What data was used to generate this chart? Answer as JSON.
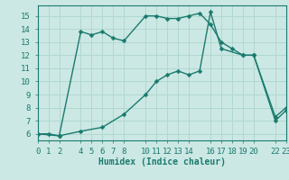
{
  "xlabel": "Humidex (Indice chaleur)",
  "bg_color": "#cce8e4",
  "grid_color": "#b0d8d0",
  "line_color": "#1a7a6e",
  "xlim": [
    0,
    23
  ],
  "ylim": [
    5.5,
    15.8
  ],
  "xticks": [
    0,
    1,
    2,
    4,
    5,
    6,
    7,
    8,
    10,
    11,
    12,
    13,
    14,
    16,
    17,
    18,
    19,
    20,
    22,
    23
  ],
  "yticks": [
    6,
    7,
    8,
    9,
    10,
    11,
    12,
    13,
    14,
    15
  ],
  "line1_x": [
    0,
    1,
    2,
    4,
    5,
    6,
    7,
    8,
    10,
    11,
    12,
    13,
    14,
    15,
    16,
    17,
    18,
    19,
    20,
    22,
    23
  ],
  "line1_y": [
    6.0,
    6.0,
    5.85,
    13.8,
    13.55,
    13.8,
    13.3,
    13.1,
    15.0,
    15.0,
    14.8,
    14.8,
    15.0,
    15.2,
    14.35,
    13.0,
    12.5,
    12.0,
    12.0,
    7.0,
    7.8
  ],
  "line2_x": [
    0,
    2,
    4,
    6,
    8,
    10,
    11,
    12,
    13,
    14,
    15,
    16,
    17,
    19,
    20,
    22,
    23
  ],
  "line2_y": [
    6.0,
    5.85,
    6.2,
    6.5,
    7.5,
    9.0,
    10.0,
    10.5,
    10.8,
    10.5,
    10.8,
    15.3,
    12.5,
    12.0,
    12.0,
    7.3,
    8.0
  ],
  "marker_size": 2.5,
  "line_width": 1.0,
  "font_size": 6.5
}
